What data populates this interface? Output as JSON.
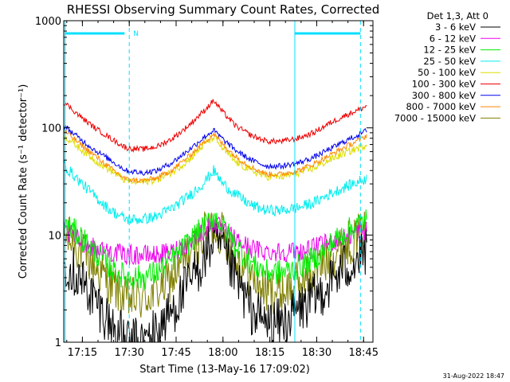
{
  "chart_data": {
    "type": "line",
    "title": "RHESSI Observing Summary Count Rates, Corrected",
    "xlabel": "Start Time (13-May-16 17:09:02)",
    "ylabel": "Corrected Count Rate (s⁻¹ detector⁻¹)",
    "yscale": "log",
    "ylim": [
      1,
      1000
    ],
    "xlim": [
      "17:09:02",
      "18:48:00"
    ],
    "x_ticks": [
      "17:15",
      "17:30",
      "17:45",
      "18:00",
      "18:15",
      "18:30",
      "18:45"
    ],
    "y_ticks": [
      "1",
      "10",
      "100",
      "1000"
    ],
    "grid": false,
    "legend_position": "right",
    "legend_header": "Det 1,3, Att 0",
    "x_sample_times": [
      "17:09",
      "17:14",
      "17:19",
      "17:24",
      "17:29",
      "17:34",
      "17:39",
      "17:44",
      "17:49",
      "17:54",
      "17:57",
      "18:00",
      "18:04",
      "18:09",
      "18:14",
      "18:19",
      "18:24",
      "18:29",
      "18:34",
      "18:39",
      "18:44",
      "18:46"
    ],
    "series": [
      {
        "name": "3 - 6 keV",
        "color": "#000000",
        "values": [
          6,
          4,
          2.5,
          1.5,
          1,
          1,
          1.3,
          2,
          3.5,
          6,
          9,
          7,
          4,
          2,
          1.5,
          1.5,
          2,
          2.5,
          3.5,
          5,
          6,
          7
        ]
      },
      {
        "name": "6 - 12 keV",
        "color": "#ee00ee",
        "values": [
          11,
          9,
          7.5,
          7,
          6.5,
          6.5,
          6.5,
          7,
          8.5,
          11,
          13,
          11,
          9,
          7.5,
          7,
          7,
          7,
          7.5,
          8.5,
          9.5,
          11,
          11
        ]
      },
      {
        "name": "12 - 25 keV",
        "color": "#00ee00",
        "values": [
          13,
          10,
          7,
          5,
          4,
          4,
          4.5,
          6,
          8.5,
          12,
          15,
          12,
          8,
          5.5,
          4.5,
          4.5,
          5,
          6,
          8,
          10.5,
          13,
          14
        ]
      },
      {
        "name": "25 - 50 keV",
        "color": "#00eeee",
        "values": [
          45,
          32,
          23,
          17,
          14,
          14,
          15,
          18,
          23,
          31,
          40,
          30,
          24,
          19,
          17,
          17,
          18,
          20,
          24,
          28,
          32,
          34
        ]
      },
      {
        "name": "50 - 100 keV",
        "color": "#dddd00",
        "values": [
          85,
          65,
          50,
          40,
          32,
          31,
          33,
          39,
          50,
          70,
          82,
          64,
          48,
          40,
          35,
          35,
          38,
          42,
          50,
          58,
          66,
          70
        ]
      },
      {
        "name": "100 - 300 keV",
        "color": "#ee0000",
        "values": [
          175,
          130,
          100,
          80,
          65,
          63,
          67,
          80,
          105,
          145,
          180,
          140,
          105,
          85,
          75,
          75,
          80,
          90,
          110,
          130,
          150,
          160
        ]
      },
      {
        "name": "300 - 800 keV",
        "color": "#0000ee",
        "values": [
          105,
          80,
          62,
          50,
          40,
          38,
          40,
          48,
          62,
          82,
          95,
          78,
          62,
          50,
          44,
          44,
          47,
          53,
          63,
          75,
          88,
          95
        ]
      },
      {
        "name": "800 - 7000 keV",
        "color": "#ff8800",
        "values": [
          95,
          72,
          55,
          42,
          33,
          32,
          34,
          41,
          54,
          74,
          88,
          70,
          54,
          43,
          37,
          37,
          40,
          46,
          55,
          66,
          78,
          85
        ]
      },
      {
        "name": "7000 - 15000 keV",
        "color": "#808000",
        "values": [
          10,
          7.5,
          5,
          3.5,
          2.5,
          2.5,
          3,
          4,
          6.5,
          10,
          12.5,
          10,
          6.5,
          4,
          3,
          3,
          3.5,
          4.5,
          6,
          8,
          10,
          11
        ]
      }
    ],
    "annotations": [
      {
        "label": "N",
        "time": "17:30"
      }
    ]
  },
  "footer_date": "31-Aug-2022 18:47"
}
